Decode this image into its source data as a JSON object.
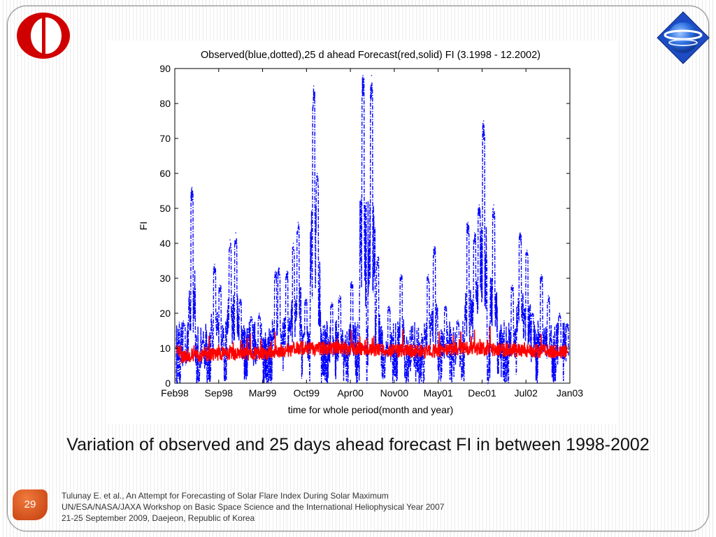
{
  "slide": {
    "caption": "Variation of observed and 25 days ahead forecast FI in between 1998-2002",
    "page_number": "29",
    "footer_lines": [
      "Tulunay E. et al., An Attempt for Forecasting of Solar Flare Index During Solar Maximum",
      "UN/ESA/NASA/JAXA Workshop on Basic Space Science and the International Heliophysical Year 2007",
      "21-25 September 2009, Daejeon, Republic of Korea"
    ],
    "logos": {
      "left": "metu-logo",
      "right": "globe-logo"
    },
    "colors": {
      "badge": "#d9531e",
      "logo_red": "#d10000",
      "logo_blue": "#1a5fd6"
    }
  },
  "chart_data": {
    "type": "line",
    "title": "Observed(blue,dotted),25 d ahead Forecast(red,solid) FI (3.1998 - 12.2002)",
    "xlabel": "time for whole period(month and year)",
    "ylabel": "FI",
    "ylim": [
      0,
      90
    ],
    "yticks": [
      0,
      10,
      20,
      30,
      40,
      50,
      60,
      70,
      80,
      90
    ],
    "xticks": [
      "Feb98",
      "Sep98",
      "Mar99",
      "Oct99",
      "Apr00",
      "Nov00",
      "May01",
      "Dec01",
      "Jul02",
      "Jan03"
    ],
    "grid": false,
    "series": [
      {
        "color": "#0000ff",
        "style": "dash-dot",
        "peaks": [
          {
            "x": "1998-03-15",
            "y": 17
          },
          {
            "x": "1998-04-20",
            "y": 56
          },
          {
            "x": "1998-06-10",
            "y": 12
          },
          {
            "x": "1998-08-01",
            "y": 34
          },
          {
            "x": "1998-08-25",
            "y": 28
          },
          {
            "x": "1998-10-10",
            "y": 41
          },
          {
            "x": "1998-11-05",
            "y": 43
          },
          {
            "x": "1998-11-25",
            "y": 24
          },
          {
            "x": "1999-01-15",
            "y": 19
          },
          {
            "x": "1999-02-20",
            "y": 20
          },
          {
            "x": "1999-05-05",
            "y": 32
          },
          {
            "x": "1999-05-20",
            "y": 33
          },
          {
            "x": "1999-06-25",
            "y": 32
          },
          {
            "x": "1999-07-25",
            "y": 40
          },
          {
            "x": "1999-08-15",
            "y": 46
          },
          {
            "x": "1999-09-20",
            "y": 24
          },
          {
            "x": "1999-10-25",
            "y": 85
          },
          {
            "x": "1999-11-10",
            "y": 60
          },
          {
            "x": "2000-01-15",
            "y": 23
          },
          {
            "x": "2000-02-20",
            "y": 25
          },
          {
            "x": "2000-04-15",
            "y": 29
          },
          {
            "x": "2000-06-05",
            "y": 88
          },
          {
            "x": "2000-07-14",
            "y": 88
          },
          {
            "x": "2000-08-10",
            "y": 36
          },
          {
            "x": "2000-10-01",
            "y": 22
          },
          {
            "x": "2000-11-25",
            "y": 31
          },
          {
            "x": "2001-01-15",
            "y": 13
          },
          {
            "x": "2001-03-29",
            "y": 31
          },
          {
            "x": "2001-04-25",
            "y": 39
          },
          {
            "x": "2001-06-15",
            "y": 22
          },
          {
            "x": "2001-08-10",
            "y": 18
          },
          {
            "x": "2001-09-25",
            "y": 46
          },
          {
            "x": "2001-10-25",
            "y": 43
          },
          {
            "x": "2001-11-15",
            "y": 51
          },
          {
            "x": "2001-12-05",
            "y": 75
          },
          {
            "x": "2002-01-20",
            "y": 51
          },
          {
            "x": "2002-04-15",
            "y": 28
          },
          {
            "x": "2002-05-20",
            "y": 43
          },
          {
            "x": "2002-06-20",
            "y": 38
          },
          {
            "x": "2002-07-15",
            "y": 20
          },
          {
            "x": "2002-08-25",
            "y": 31
          },
          {
            "x": "2002-09-25",
            "y": 25
          },
          {
            "x": "2002-11-15",
            "y": 20
          },
          {
            "x": "2002-12-20",
            "y": 17
          }
        ],
        "baseline_range": [
          0,
          18
        ]
      },
      {
        "color": "#ff0000",
        "style": "solid",
        "mean_levels": [
          {
            "x": "1998-03-01",
            "y": 7.5
          },
          {
            "x": "1998-09-01",
            "y": 8.5
          },
          {
            "x": "1999-03-01",
            "y": 8.5
          },
          {
            "x": "1999-09-01",
            "y": 10
          },
          {
            "x": "2000-03-01",
            "y": 10
          },
          {
            "x": "2000-09-01",
            "y": 9.5
          },
          {
            "x": "2001-03-01",
            "y": 9
          },
          {
            "x": "2001-09-01",
            "y": 10
          },
          {
            "x": "2002-03-01",
            "y": 9.5
          },
          {
            "x": "2002-12-31",
            "y": 9
          }
        ],
        "range": [
          5,
          17
        ]
      }
    ]
  }
}
